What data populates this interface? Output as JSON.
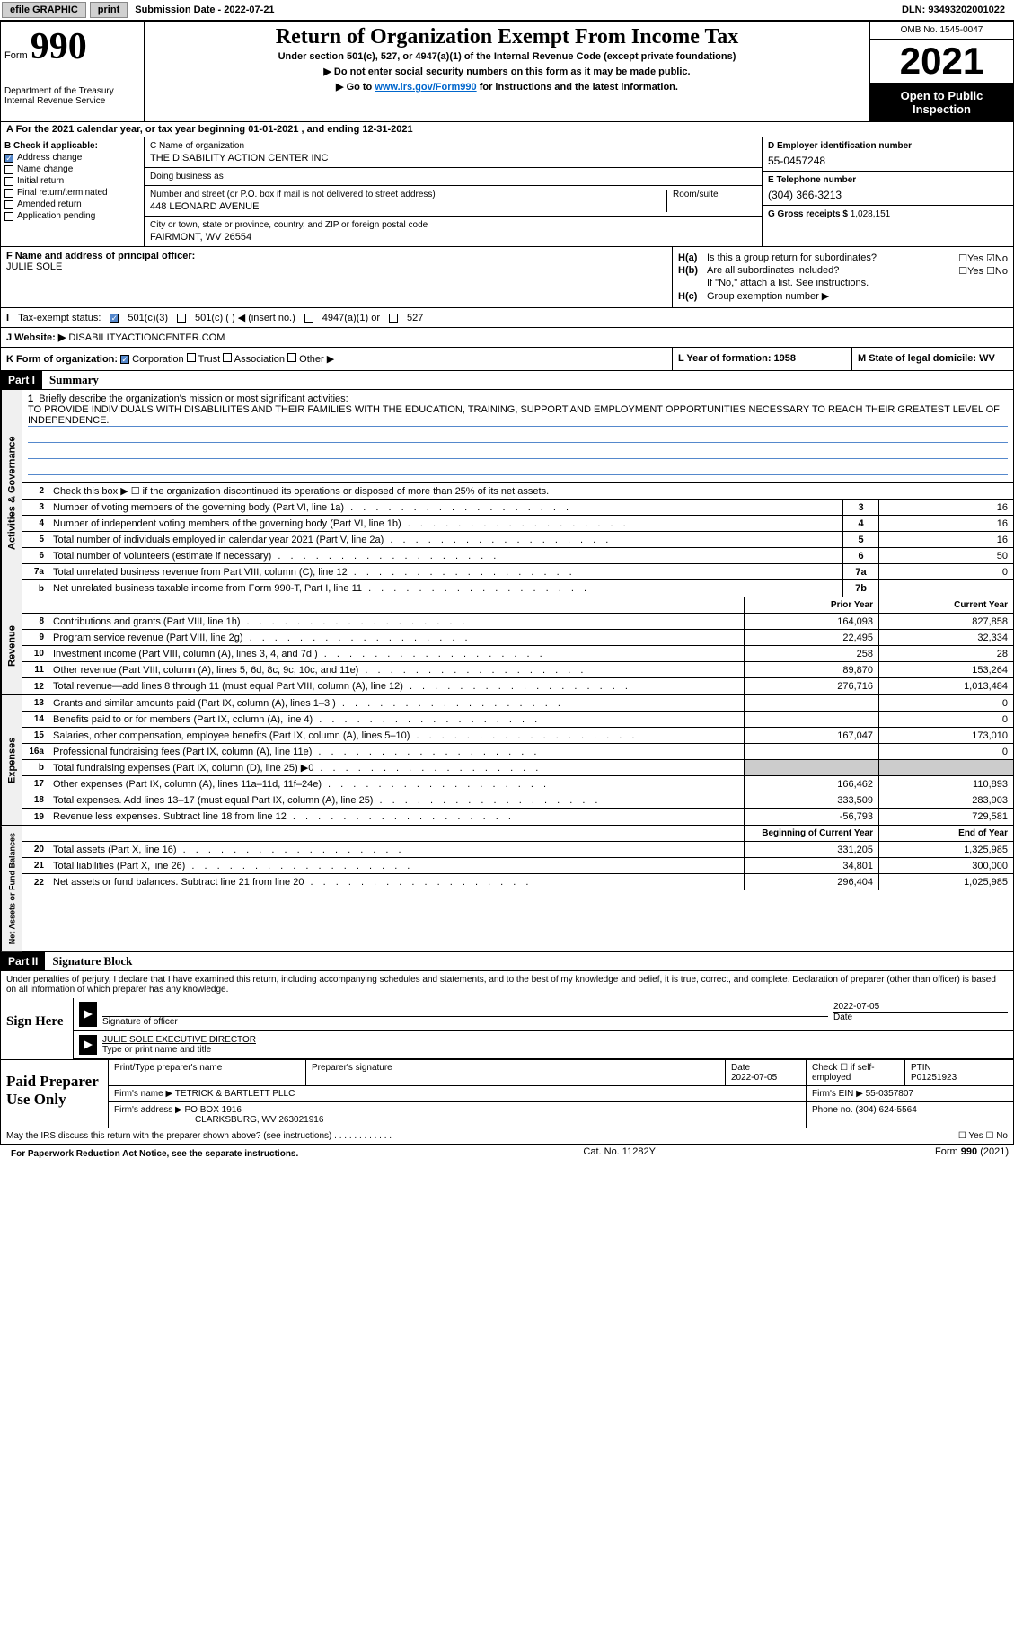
{
  "topbar": {
    "efile": "efile GRAPHIC",
    "print": "print",
    "subdate_label": "Submission Date - ",
    "subdate": "2022-07-21",
    "dln_label": "DLN: ",
    "dln": "93493202001022"
  },
  "header": {
    "form_label": "Form",
    "form_num": "990",
    "dept": "Department of the Treasury\nInternal Revenue Service",
    "title": "Return of Organization Exempt From Income Tax",
    "sub": "Under section 501(c), 527, or 4947(a)(1) of the Internal Revenue Code (except private foundations)",
    "note1": "Do not enter social security numbers on this form as it may be made public.",
    "note2_pre": "Go to ",
    "note2_link": "www.irs.gov/Form990",
    "note2_post": " for instructions and the latest information.",
    "omb": "OMB No. 1545-0047",
    "year": "2021",
    "open": "Open to Public Inspection"
  },
  "row_a": "A For the 2021 calendar year, or tax year beginning 01-01-2021    , and ending 12-31-2021",
  "col_b": {
    "title": "B Check if applicable:",
    "addr": "Address change",
    "name": "Name change",
    "init": "Initial return",
    "final": "Final return/terminated",
    "amend": "Amended return",
    "app": "Application pending"
  },
  "col_c": {
    "name_label": "C Name of organization",
    "name": "THE DISABILITY ACTION CENTER INC",
    "dba": "Doing business as",
    "addr_label": "Number and street (or P.O. box if mail is not delivered to street address)",
    "room": "Room/suite",
    "addr": "448 LEONARD AVENUE",
    "city_label": "City or town, state or province, country, and ZIP or foreign postal code",
    "city": "FAIRMONT, WV  26554"
  },
  "col_d": {
    "ein_label": "D Employer identification number",
    "ein": "55-0457248",
    "tel_label": "E Telephone number",
    "tel": "(304) 366-3213",
    "gross_label": "G Gross receipts $",
    "gross": "1,028,151"
  },
  "fg": {
    "f_label": "F Name and address of principal officer:",
    "f_name": "JULIE SOLE",
    "ha": "Is this a group return for subordinates?",
    "hb": "Are all subordinates included?",
    "hb_note": "If \"No,\" attach a list. See instructions.",
    "hc": "Group exemption number ▶"
  },
  "row_i": {
    "label": "Tax-exempt status:",
    "o1": "501(c)(3)",
    "o2": "501(c) (  ) ◀ (insert no.)",
    "o3": "4947(a)(1) or",
    "o4": "527"
  },
  "row_j": {
    "label": "J   Website: ▶",
    "val": "DISABILITYACTIONCENTER.COM"
  },
  "row_k": {
    "k": "K Form of organization:",
    "corp": "Corporation",
    "trust": "Trust",
    "assoc": "Association",
    "other": "Other ▶",
    "l": "L Year of formation: 1958",
    "m": "M State of legal domicile: WV"
  },
  "part1": {
    "header": "Part I",
    "title": "Summary",
    "side1": "Activities & Governance",
    "side2": "Revenue",
    "side3": "Expenses",
    "side4": "Net Assets or Fund Balances",
    "q1": "Briefly describe the organization's mission or most significant activities:",
    "mission": "TO PROVIDE INDIVIDUALS WITH DISABLILITES AND THEIR FAMILIES WITH THE EDUCATION, TRAINING, SUPPORT AND EMPLOYMENT OPPORTUNITIES NECESSARY TO REACH THEIR GREATEST LEVEL OF INDEPENDENCE.",
    "q2": "Check this box ▶ ☐  if the organization discontinued its operations or disposed of more than 25% of its net assets.",
    "rows": [
      {
        "n": "3",
        "t": "Number of voting members of the governing body (Part VI, line 1a)",
        "b": "3",
        "v": "16"
      },
      {
        "n": "4",
        "t": "Number of independent voting members of the governing body (Part VI, line 1b)",
        "b": "4",
        "v": "16"
      },
      {
        "n": "5",
        "t": "Total number of individuals employed in calendar year 2021 (Part V, line 2a)",
        "b": "5",
        "v": "16"
      },
      {
        "n": "6",
        "t": "Total number of volunteers (estimate if necessary)",
        "b": "6",
        "v": "50"
      },
      {
        "n": "7a",
        "t": "Total unrelated business revenue from Part VIII, column (C), line 12",
        "b": "7a",
        "v": "0"
      },
      {
        "n": "b",
        "t": "Net unrelated business taxable income from Form 990-T, Part I, line 11",
        "b": "7b",
        "v": ""
      }
    ],
    "colhead_prior": "Prior Year",
    "colhead_current": "Current Year",
    "rev": [
      {
        "n": "8",
        "t": "Contributions and grants (Part VIII, line 1h)",
        "p": "164,093",
        "c": "827,858"
      },
      {
        "n": "9",
        "t": "Program service revenue (Part VIII, line 2g)",
        "p": "22,495",
        "c": "32,334"
      },
      {
        "n": "10",
        "t": "Investment income (Part VIII, column (A), lines 3, 4, and 7d )",
        "p": "258",
        "c": "28"
      },
      {
        "n": "11",
        "t": "Other revenue (Part VIII, column (A), lines 5, 6d, 8c, 9c, 10c, and 11e)",
        "p": "89,870",
        "c": "153,264"
      },
      {
        "n": "12",
        "t": "Total revenue—add lines 8 through 11 (must equal Part VIII, column (A), line 12)",
        "p": "276,716",
        "c": "1,013,484"
      }
    ],
    "exp": [
      {
        "n": "13",
        "t": "Grants and similar amounts paid (Part IX, column (A), lines 1–3 )",
        "p": "",
        "c": "0"
      },
      {
        "n": "14",
        "t": "Benefits paid to or for members (Part IX, column (A), line 4)",
        "p": "",
        "c": "0"
      },
      {
        "n": "15",
        "t": "Salaries, other compensation, employee benefits (Part IX, column (A), lines 5–10)",
        "p": "167,047",
        "c": "173,010"
      },
      {
        "n": "16a",
        "t": "Professional fundraising fees (Part IX, column (A), line 11e)",
        "p": "",
        "c": "0"
      },
      {
        "n": "b",
        "t": "Total fundraising expenses (Part IX, column (D), line 25) ▶0",
        "p": "gray",
        "c": "gray"
      },
      {
        "n": "17",
        "t": "Other expenses (Part IX, column (A), lines 11a–11d, 11f–24e)",
        "p": "166,462",
        "c": "110,893"
      },
      {
        "n": "18",
        "t": "Total expenses. Add lines 13–17 (must equal Part IX, column (A), line 25)",
        "p": "333,509",
        "c": "283,903"
      },
      {
        "n": "19",
        "t": "Revenue less expenses. Subtract line 18 from line 12",
        "p": "-56,793",
        "c": "729,581"
      }
    ],
    "colhead_begin": "Beginning of Current Year",
    "colhead_end": "End of Year",
    "net": [
      {
        "n": "20",
        "t": "Total assets (Part X, line 16)",
        "p": "331,205",
        "c": "1,325,985"
      },
      {
        "n": "21",
        "t": "Total liabilities (Part X, line 26)",
        "p": "34,801",
        "c": "300,000"
      },
      {
        "n": "22",
        "t": "Net assets or fund balances. Subtract line 21 from line 20",
        "p": "296,404",
        "c": "1,025,985"
      }
    ]
  },
  "part2": {
    "header": "Part II",
    "title": "Signature Block",
    "decl": "Under penalties of perjury, I declare that I have examined this return, including accompanying schedules and statements, and to the best of my knowledge and belief, it is true, correct, and complete. Declaration of preparer (other than officer) is based on all information of which preparer has any knowledge.",
    "sign_here": "Sign Here",
    "sig_officer": "Signature of officer",
    "sig_date": "2022-07-05",
    "date_label": "Date",
    "officer_name": "JULIE SOLE  EXECUTIVE DIRECTOR",
    "type_label": "Type or print name and title",
    "paid": "Paid Preparer Use Only",
    "prep_name_label": "Print/Type preparer's name",
    "prep_sig_label": "Preparer's signature",
    "prep_date_label": "Date",
    "prep_date": "2022-07-05",
    "check_self": "Check ☐ if self-employed",
    "ptin_label": "PTIN",
    "ptin": "P01251923",
    "firm_name_label": "Firm's name    ▶",
    "firm_name": "TETRICK & BARTLETT PLLC",
    "firm_ein_label": "Firm's EIN ▶",
    "firm_ein": "55-0357807",
    "firm_addr_label": "Firm's address ▶",
    "firm_addr1": "PO BOX 1916",
    "firm_addr2": "CLARKSBURG, WV  263021916",
    "phone_label": "Phone no.",
    "phone": "(304) 624-5564",
    "may_irs": "May the IRS discuss this return with the preparer shown above? (see instructions)",
    "paperwork": "For Paperwork Reduction Act Notice, see the separate instructions.",
    "cat": "Cat. No. 11282Y",
    "form_foot": "Form 990 (2021)"
  }
}
